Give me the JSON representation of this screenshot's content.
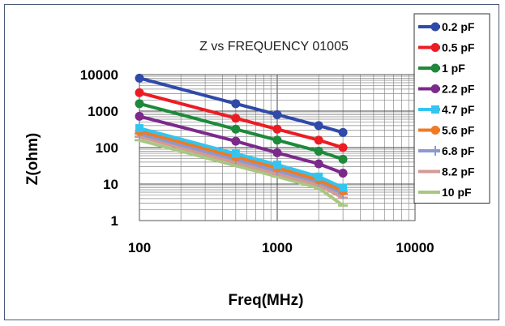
{
  "chart_data": {
    "type": "line",
    "title": "Z vs FREQUENCY 01005",
    "xlabel": "Freq(MHz)",
    "ylabel": "Z(ohm)",
    "x_scale": "log",
    "y_scale": "log",
    "xlim": [
      100,
      10000
    ],
    "ylim": [
      1,
      10000
    ],
    "x_ticks": [
      "100",
      "1000",
      "10000"
    ],
    "y_ticks": [
      "10000",
      "1000",
      "100",
      "10",
      "1"
    ],
    "grid": true,
    "legend_position": "right",
    "x": [
      100,
      500,
      1000,
      2000,
      3000
    ],
    "series": [
      {
        "name": "0.2 pF",
        "color": "#2f4aa8",
        "marker": "circle",
        "values": [
          8000,
          1600,
          800,
          400,
          260
        ]
      },
      {
        "name": "0.5 pF",
        "color": "#ec1c24",
        "marker": "circle",
        "values": [
          3200,
          640,
          320,
          160,
          100
        ]
      },
      {
        "name": "1 pF",
        "color": "#1c8a3a",
        "marker": "circle",
        "values": [
          1600,
          320,
          160,
          80,
          48
        ]
      },
      {
        "name": "2.2 pF",
        "color": "#7b2a8c",
        "marker": "circle",
        "values": [
          720,
          150,
          72,
          36,
          20
        ]
      },
      {
        "name": "4.7 pF",
        "color": "#33c5f0",
        "marker": "square",
        "values": [
          340,
          68,
          34,
          16,
          8
        ]
      },
      {
        "name": "5.6 pF",
        "color": "#f07a22",
        "marker": "circle",
        "values": [
          280,
          56,
          28,
          13,
          6.5
        ]
      },
      {
        "name": "6.8 pF",
        "color": "#8a9ad0",
        "marker": "plus",
        "values": [
          240,
          47,
          23,
          11.5,
          5.4
        ]
      },
      {
        "name": "8.2 pF",
        "color": "#d49a94",
        "marker": "dash",
        "values": [
          200,
          39,
          19,
          9.5,
          4.2
        ]
      },
      {
        "name": "10 pF",
        "color": "#a8c882",
        "marker": "dash",
        "values": [
          160,
          32,
          16,
          7.8,
          2.6
        ]
      }
    ]
  }
}
